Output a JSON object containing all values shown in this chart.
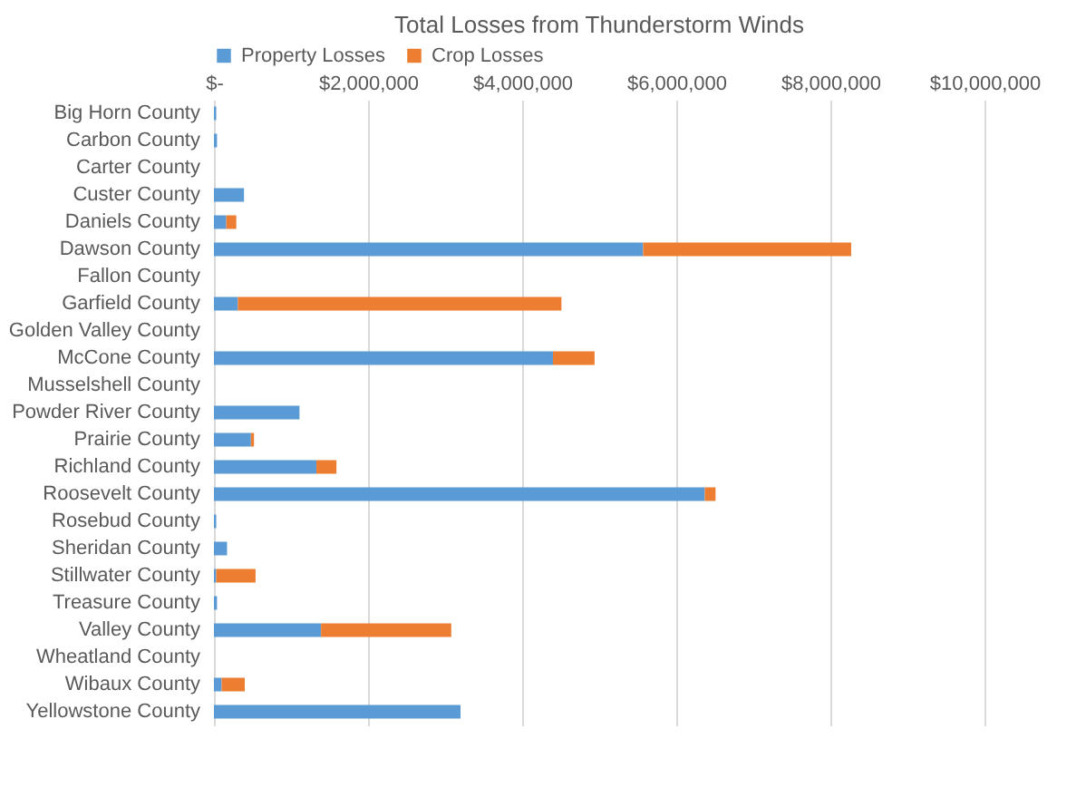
{
  "chart_data": {
    "type": "bar",
    "title": "Total Losses from Thunderstorm Winds",
    "orientation": "horizontal",
    "stacked": true,
    "legend": "top",
    "grid": "x",
    "categories": [
      "Big Horn County",
      "Carbon County",
      "Carter County",
      "Custer County",
      "Daniels County",
      "Dawson County",
      "Fallon County",
      "Garfield County",
      "Golden Valley County",
      "McCone County",
      "Musselshell County",
      "Powder River County",
      "Prairie County",
      "Richland County",
      "Roosevelt County",
      "Rosebud County",
      "Sheridan County",
      "Stillwater County",
      "Treasure County",
      "Valley County",
      "Wheatland County",
      "Wibaux County",
      "Yellowstone County"
    ],
    "series": [
      {
        "name": "Property Losses",
        "color": "#5b9bd5",
        "values": [
          30000,
          40000,
          0,
          390000,
          160000,
          5570000,
          0,
          310000,
          0,
          4400000,
          0,
          1110000,
          480000,
          1330000,
          6370000,
          30000,
          170000,
          30000,
          40000,
          1390000,
          0,
          100000,
          3200000
        ]
      },
      {
        "name": "Crop Losses",
        "color": "#ed7d31",
        "values": [
          0,
          0,
          0,
          0,
          130000,
          2700000,
          0,
          4200000,
          0,
          540000,
          0,
          0,
          40000,
          260000,
          140000,
          0,
          0,
          510000,
          0,
          1690000,
          0,
          300000,
          0
        ]
      }
    ],
    "xlim": [
      0,
      10000000
    ],
    "xticks": [
      {
        "value": 0,
        "label": "$-"
      },
      {
        "value": 2000000,
        "label": "$2,000,000"
      },
      {
        "value": 4000000,
        "label": "$4,000,000"
      },
      {
        "value": 6000000,
        "label": "$6,000,000"
      },
      {
        "value": 8000000,
        "label": "$8,000,000"
      },
      {
        "value": 10000000,
        "label": "$10,000,000"
      }
    ]
  }
}
